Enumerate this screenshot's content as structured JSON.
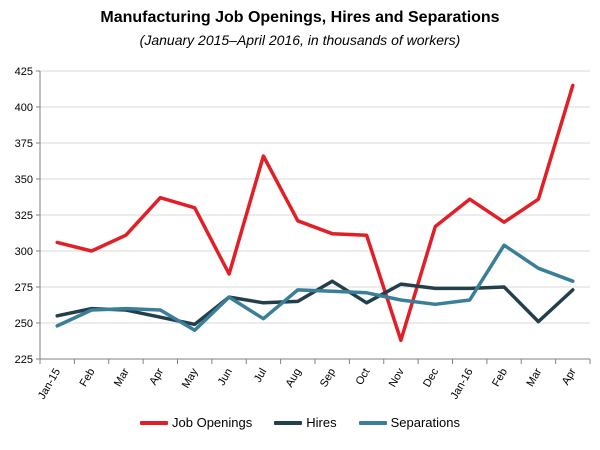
{
  "chart_data": {
    "type": "line",
    "title": "Manufacturing Job Openings, Hires and Separations",
    "subtitle": "(January 2015–April 2016, in thousands of workers)",
    "categories": [
      "Jan-15",
      "Feb",
      "Mar",
      "Apr",
      "May",
      "Jun",
      "Jul",
      "Aug",
      "Sep",
      "Oct",
      "Nov",
      "Dec",
      "Jan-16",
      "Feb",
      "Mar",
      "Apr"
    ],
    "ylim": [
      225,
      425
    ],
    "yticks": [
      "225",
      "250",
      "275",
      "300",
      "325",
      "350",
      "375",
      "400",
      "425"
    ],
    "grid": true,
    "legend_position": "bottom",
    "series": [
      {
        "name": "Job Openings",
        "color": "#e21f26",
        "values": [
          306,
          300,
          311,
          337,
          330,
          284,
          366,
          321,
          312,
          311,
          238,
          317,
          336,
          320,
          336,
          415
        ]
      },
      {
        "name": "Hires",
        "color": "#243f4c",
        "values": [
          255,
          260,
          259,
          254,
          249,
          268,
          264,
          265,
          279,
          264,
          277,
          274,
          274,
          275,
          251,
          273
        ]
      },
      {
        "name": "Separations",
        "color": "#3a7f98",
        "values": [
          248,
          259,
          260,
          259,
          245,
          268,
          253,
          273,
          272,
          271,
          266,
          263,
          266,
          304,
          288,
          279
        ]
      }
    ]
  }
}
